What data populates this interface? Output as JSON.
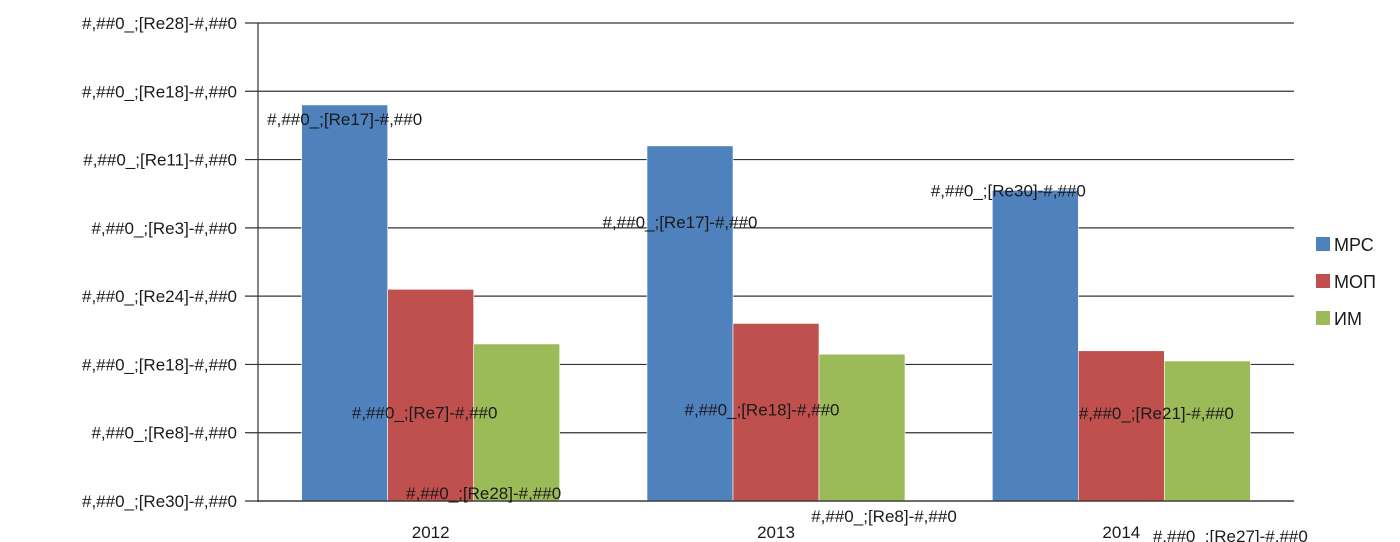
{
  "chart_data": {
    "type": "bar",
    "categories": [
      "2012",
      "2013",
      "2014"
    ],
    "series": [
      {
        "name": "МРС",
        "color": "#4f81bd",
        "values": [
          5.8,
          5.2,
          4.55
        ],
        "labels": [
          "#,##0_;[Re17]-#,##0",
          "#,##0_;[Re17]-#,##0",
          "#,##0_;[Re30]-#,##0"
        ]
      },
      {
        "name": "МОП",
        "color": "#c0504d",
        "values": [
          3.1,
          2.6,
          2.2
        ],
        "labels": [
          "#,##0_;[Re7]-#,##0",
          "#,##0_;[Re18]-#,##0",
          "#,##0_;[Re21]-#,##0"
        ]
      },
      {
        "name": "ИМ",
        "color": "#9bbb59",
        "values": [
          2.3,
          2.15,
          2.05
        ],
        "labels": [
          "#,##0_;[Re28]-#,##0",
          "#,##0_;[Re8]-#,##0",
          "#,##0_;[Re27]-#,##0"
        ]
      }
    ],
    "y_ticks": [
      "#,##0_;[Re30]-#,##0",
      "#,##0_;[Re8]-#,##0",
      "#,##0_;[Re18]-#,##0",
      "#,##0_;[Re24]-#,##0",
      "#,##0_;[Re3]-#,##0",
      "#,##0_;[Re11]-#,##0",
      "#,##0_;[Re18]-#,##0",
      "#,##0_;[Re28]-#,##0"
    ],
    "ylim": [
      0,
      7
    ],
    "grid": true,
    "legend_position": "right"
  }
}
